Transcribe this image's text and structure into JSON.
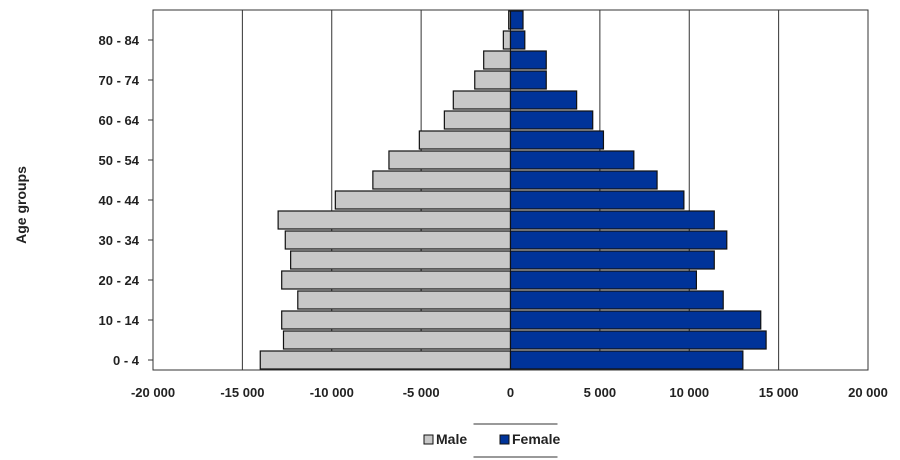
{
  "chart_data": {
    "type": "bar",
    "orientation": "horizontal",
    "ylabel": "Age groups",
    "xlabel": "",
    "xlim": [
      -20000,
      20000
    ],
    "x_ticks": [
      -20000,
      -15000,
      -10000,
      -5000,
      0,
      5000,
      10000,
      15000,
      20000
    ],
    "x_tick_labels": [
      "-20 000",
      "-15 000",
      "-10 000",
      "-5 000",
      "0",
      "5 000",
      "10 000",
      "15 000",
      "20 000"
    ],
    "categories": [
      "0 - 4",
      "5 - 9",
      "10 - 14",
      "15 - 19",
      "20 - 24",
      "25 - 29",
      "30 - 34",
      "35 - 39",
      "40 - 44",
      "45 - 49",
      "50 - 54",
      "55 - 59",
      "60 - 64",
      "65 - 69",
      "70 - 74",
      "75 - 79",
      "80 - 84",
      "85+"
    ],
    "category_labels_shown": [
      "0 - 4",
      "",
      "10 - 14",
      "",
      "20 - 24",
      "",
      "30 - 34",
      "",
      "40 - 44",
      "",
      "50 - 54",
      "",
      "60 - 64",
      "",
      "70 - 74",
      "",
      "80 - 84",
      ""
    ],
    "series": [
      {
        "name": "Male",
        "color": "#c8c8c8",
        "values": [
          -14000,
          -12700,
          -12800,
          -11900,
          -12800,
          -12300,
          -12600,
          -13000,
          -9800,
          -7700,
          -6800,
          -5100,
          -3700,
          -3200,
          -2000,
          -1500,
          -400,
          -100
        ]
      },
      {
        "name": "Female",
        "color": "#003399",
        "values": [
          13000,
          14300,
          14000,
          11900,
          10400,
          11400,
          12100,
          11400,
          9700,
          8200,
          6900,
          5200,
          4600,
          3700,
          2000,
          2000,
          800,
          700
        ]
      }
    ],
    "grid": true,
    "legend_position": "bottom-center"
  }
}
